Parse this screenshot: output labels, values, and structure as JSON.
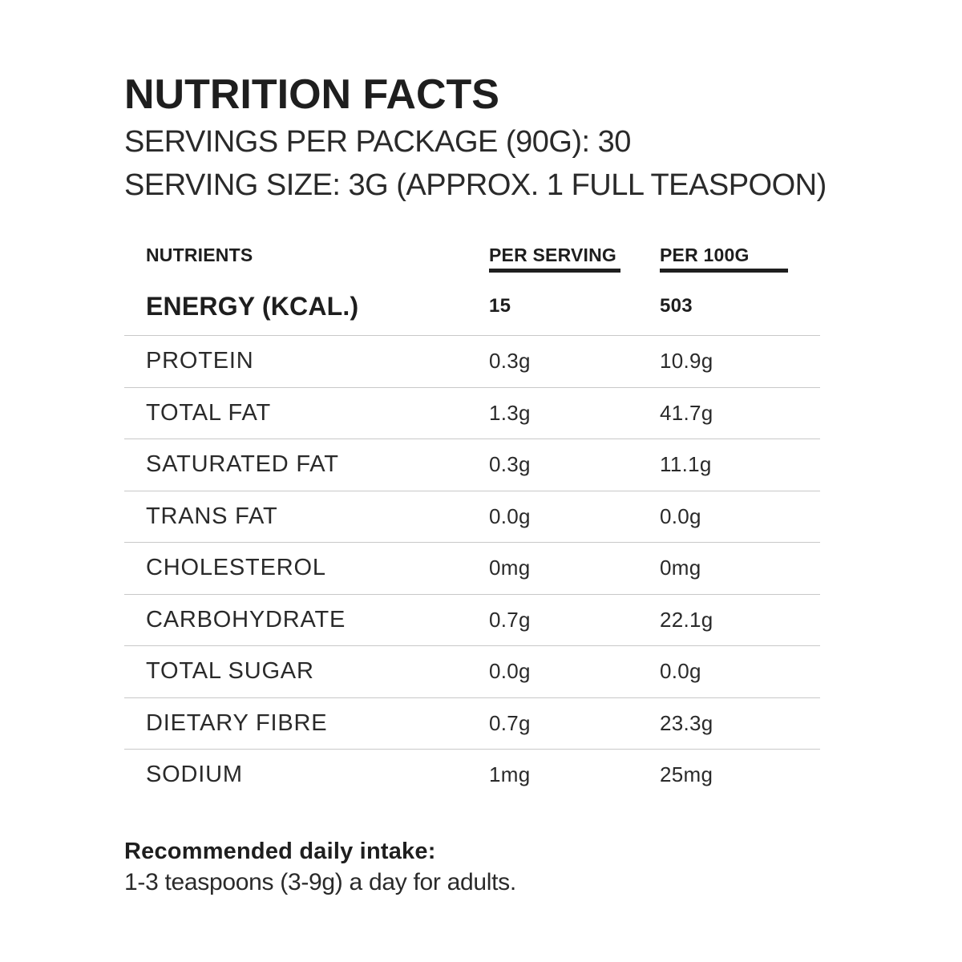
{
  "colors": {
    "background": "#ffffff",
    "text": "#1e1e1e",
    "row_text": "#2a2a2a",
    "divider": "#c8c8c8",
    "header_underline": "#1f1f1f"
  },
  "header": {
    "title": "NUTRITION FACTS",
    "servings_line": "SERVINGS PER PACKAGE (90G): 30",
    "serving_size_line": "SERVING SIZE: 3G (APPROX. 1 FULL TEASPOON)"
  },
  "table": {
    "columns": [
      "NUTRIENTS",
      "PER SERVING",
      "PER 100G"
    ],
    "rows": [
      {
        "nutrient": "ENERGY (KCAL.)",
        "per_serving": "15",
        "per_100g": "503"
      },
      {
        "nutrient": "PROTEIN",
        "per_serving": "0.3g",
        "per_100g": "10.9g"
      },
      {
        "nutrient": "TOTAL FAT",
        "per_serving": "1.3g",
        "per_100g": "41.7g"
      },
      {
        "nutrient": "SATURATED FAT",
        "per_serving": "0.3g",
        "per_100g": "11.1g"
      },
      {
        "nutrient": "TRANS FAT",
        "per_serving": "0.0g",
        "per_100g": "0.0g"
      },
      {
        "nutrient": "CHOLESTEROL",
        "per_serving": "0mg",
        "per_100g": "0mg"
      },
      {
        "nutrient": "CARBOHYDRATE",
        "per_serving": "0.7g",
        "per_100g": "22.1g"
      },
      {
        "nutrient": "TOTAL SUGAR",
        "per_serving": "0.0g",
        "per_100g": "0.0g"
      },
      {
        "nutrient": "DIETARY FIBRE",
        "per_serving": "0.7g",
        "per_100g": "23.3g"
      },
      {
        "nutrient": "SODIUM",
        "per_serving": "1mg",
        "per_100g": "25mg"
      }
    ]
  },
  "footer": {
    "heading": "Recommended daily intake:",
    "text": "1-3 teaspoons (3-9g) a day for adults."
  }
}
